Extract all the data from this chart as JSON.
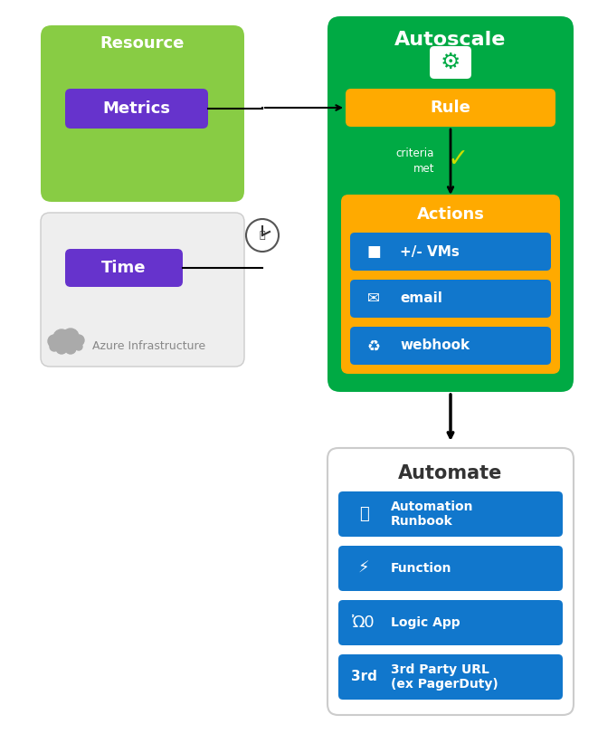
{
  "bg_color": "#ffffff",
  "green_dark": "#00aa44",
  "green_light": "#88cc44",
  "orange": "#ffaa00",
  "purple": "#6633cc",
  "blue": "#1177cc",
  "gray_bg": "#eeeeee",
  "resource_label": "Resource",
  "metrics_label": "Metrics",
  "time_label": "Time",
  "azure_label": "Azure Infrastructure",
  "autoscale_label": "Autoscale",
  "rule_label": "Rule",
  "criteria_label": "criteria\nmet",
  "actions_label": "Actions",
  "action_items": [
    "+/- VMs",
    "email",
    "webhook"
  ],
  "automate_label": "Automate",
  "automate_items": [
    "Automation\nRunbook",
    "Function",
    "Logic App",
    "3rd Party URL\n(ex PagerDuty)"
  ]
}
